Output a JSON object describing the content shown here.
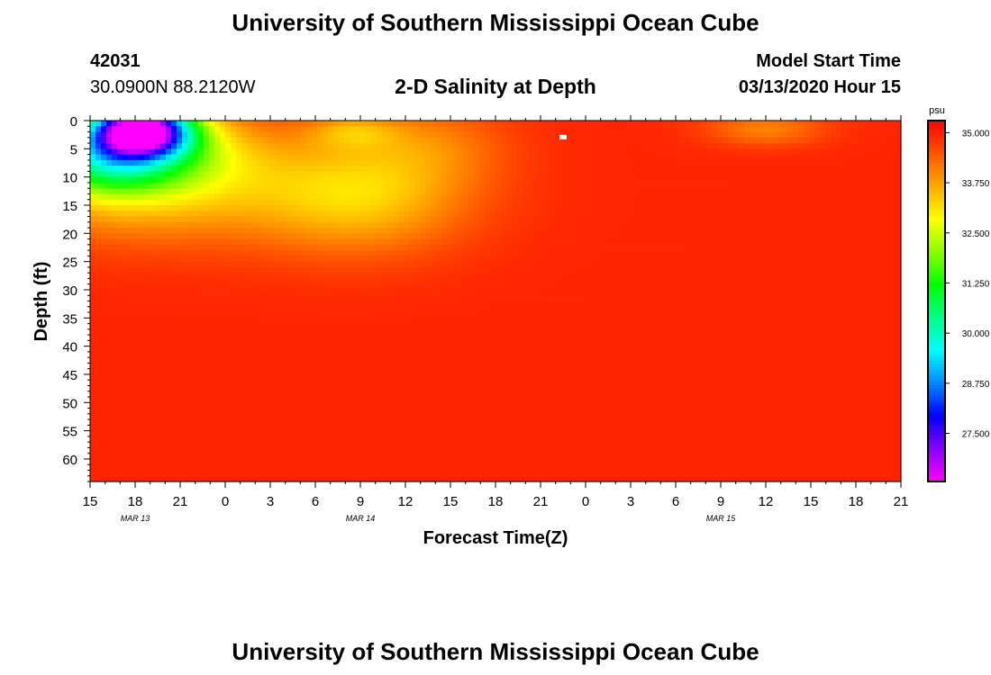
{
  "header": {
    "title": "University of Southern Mississippi Ocean Cube",
    "station_id": "42031",
    "station_coords": "30.0900N 88.2120W",
    "plot_title": "2-D Salinity at Depth",
    "start_label": "Model Start Time",
    "start_time": "03/13/2020 Hour 15"
  },
  "footer": {
    "title": "University of Southern Mississippi Ocean Cube"
  },
  "chart_data": {
    "type": "heatmap",
    "title": "2-D Salinity at Depth",
    "xlabel": "Forecast Time(Z)",
    "ylabel": "Depth (ft)",
    "x_ticks": [
      "15",
      "18",
      "21",
      "0",
      "3",
      "6",
      "9",
      "12",
      "15",
      "18",
      "21",
      "0",
      "3",
      "6",
      "9",
      "12",
      "15",
      "18",
      "21"
    ],
    "date_labels": [
      {
        "label": "MAR 13",
        "tick_index": 1
      },
      {
        "label": "MAR 14",
        "tick_index": 6
      },
      {
        "label": "MAR 15",
        "tick_index": 14
      }
    ],
    "y_ticks": [
      0,
      5,
      10,
      15,
      20,
      25,
      30,
      35,
      40,
      45,
      50,
      55,
      60
    ],
    "ylim": [
      0,
      64
    ],
    "xlim_hours": [
      0,
      54
    ],
    "colorbar": {
      "unit": "psu",
      "ticks": [
        "35.000",
        "33.750",
        "32.500",
        "31.250",
        "30.000",
        "28.750",
        "27.500"
      ],
      "tick_values": [
        35.0,
        33.75,
        32.5,
        31.25,
        30.0,
        28.75,
        27.5
      ],
      "range": [
        26.3,
        35.3
      ],
      "colors": [
        "#ff00ff",
        "#8800ff",
        "#0000ff",
        "#0088ff",
        "#00ffff",
        "#00ff88",
        "#00ff00",
        "#88ff00",
        "#ffff00",
        "#ffaa00",
        "#ff5500",
        "#ff0000"
      ]
    },
    "grid": false,
    "background_value": 34.95,
    "features": [
      {
        "hour": 3.4,
        "depth": 1.5,
        "sx": 3.2,
        "sy": 4.5,
        "delta": -7.4
      },
      {
        "hour": 3.0,
        "depth": 5,
        "sx": 6.5,
        "sy": 7,
        "delta": -2.8
      },
      {
        "hour": 1.0,
        "depth": 7,
        "sx": 4,
        "sy": 6,
        "delta": -1.6
      },
      {
        "hour": 3.5,
        "depth": 12,
        "sx": 9,
        "sy": 9,
        "delta": -1.3
      },
      {
        "hour": 18.0,
        "depth": 13,
        "sx": 7,
        "sy": 10,
        "delta": -1.5
      },
      {
        "hour": 17.5,
        "depth": 2,
        "sx": 3,
        "sy": 3,
        "delta": -0.9
      },
      {
        "hour": 23.0,
        "depth": 4,
        "sx": 5,
        "sy": 7,
        "delta": -0.6
      },
      {
        "hour": 10.0,
        "depth": 12,
        "sx": 14,
        "sy": 12,
        "delta": -0.3
      },
      {
        "hour": 45.0,
        "depth": 1.5,
        "sx": 4,
        "sy": 3,
        "delta": -0.9
      }
    ],
    "missing_cell": {
      "hour": 31.5,
      "depth": 3
    }
  }
}
